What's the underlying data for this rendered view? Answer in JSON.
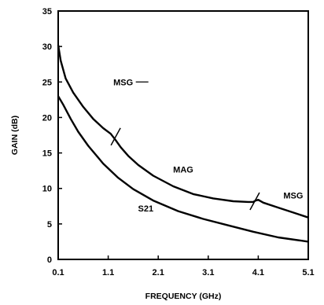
{
  "chart_data": {
    "type": "line",
    "xlabel": "FREQUENCY (GHz)",
    "ylabel": "GAIN (dB)",
    "xlim": [
      0.1,
      5.1
    ],
    "ylim": [
      0,
      35
    ],
    "x_ticks": [
      0.1,
      1.1,
      2.1,
      3.1,
      4.1,
      5.1
    ],
    "x_tick_labels": [
      "0.1",
      "1.1",
      "2.1",
      "3.1",
      "4.1",
      "5.1"
    ],
    "y_ticks": [
      0,
      5,
      10,
      15,
      20,
      25,
      30,
      35
    ],
    "y_tick_labels": [
      "0",
      "5",
      "10",
      "15",
      "20",
      "25",
      "30",
      "35"
    ],
    "grid": false,
    "series": [
      {
        "name": "MSG / MAG",
        "x": [
          0.1,
          0.15,
          0.25,
          0.4,
          0.6,
          0.8,
          1.0,
          1.15,
          1.25,
          1.35,
          1.5,
          1.7,
          2.0,
          2.4,
          2.8,
          3.2,
          3.6,
          3.9,
          4.0,
          4.05,
          4.1,
          4.2,
          4.5,
          4.8,
          5.1
        ],
        "values": [
          30.2,
          28.0,
          25.5,
          23.5,
          21.5,
          19.8,
          18.5,
          17.7,
          16.8,
          15.8,
          14.6,
          13.3,
          11.8,
          10.3,
          9.2,
          8.6,
          8.2,
          8.1,
          8.1,
          8.3,
          8.4,
          8.0,
          7.3,
          6.6,
          5.9
        ]
      },
      {
        "name": "S21",
        "x": [
          0.1,
          0.2,
          0.35,
          0.5,
          0.7,
          1.0,
          1.3,
          1.6,
          2.0,
          2.5,
          3.0,
          3.5,
          4.0,
          4.5,
          5.1
        ],
        "values": [
          23.0,
          21.8,
          19.8,
          18.0,
          16.0,
          13.5,
          11.5,
          9.9,
          8.3,
          6.8,
          5.7,
          4.8,
          3.9,
          3.1,
          2.5
        ]
      }
    ],
    "annotations": [
      {
        "text": "MSG",
        "x": 1.4,
        "y": 25.0
      },
      {
        "text": "MAG",
        "x": 2.6,
        "y": 12.7
      },
      {
        "text": "MSG",
        "x": 4.8,
        "y": 9.0
      },
      {
        "text": "S21",
        "x": 1.85,
        "y": 7.2
      }
    ],
    "markers": [
      {
        "x": 1.25,
        "y": 17.3
      },
      {
        "x": 4.03,
        "y": 8.2
      }
    ]
  }
}
